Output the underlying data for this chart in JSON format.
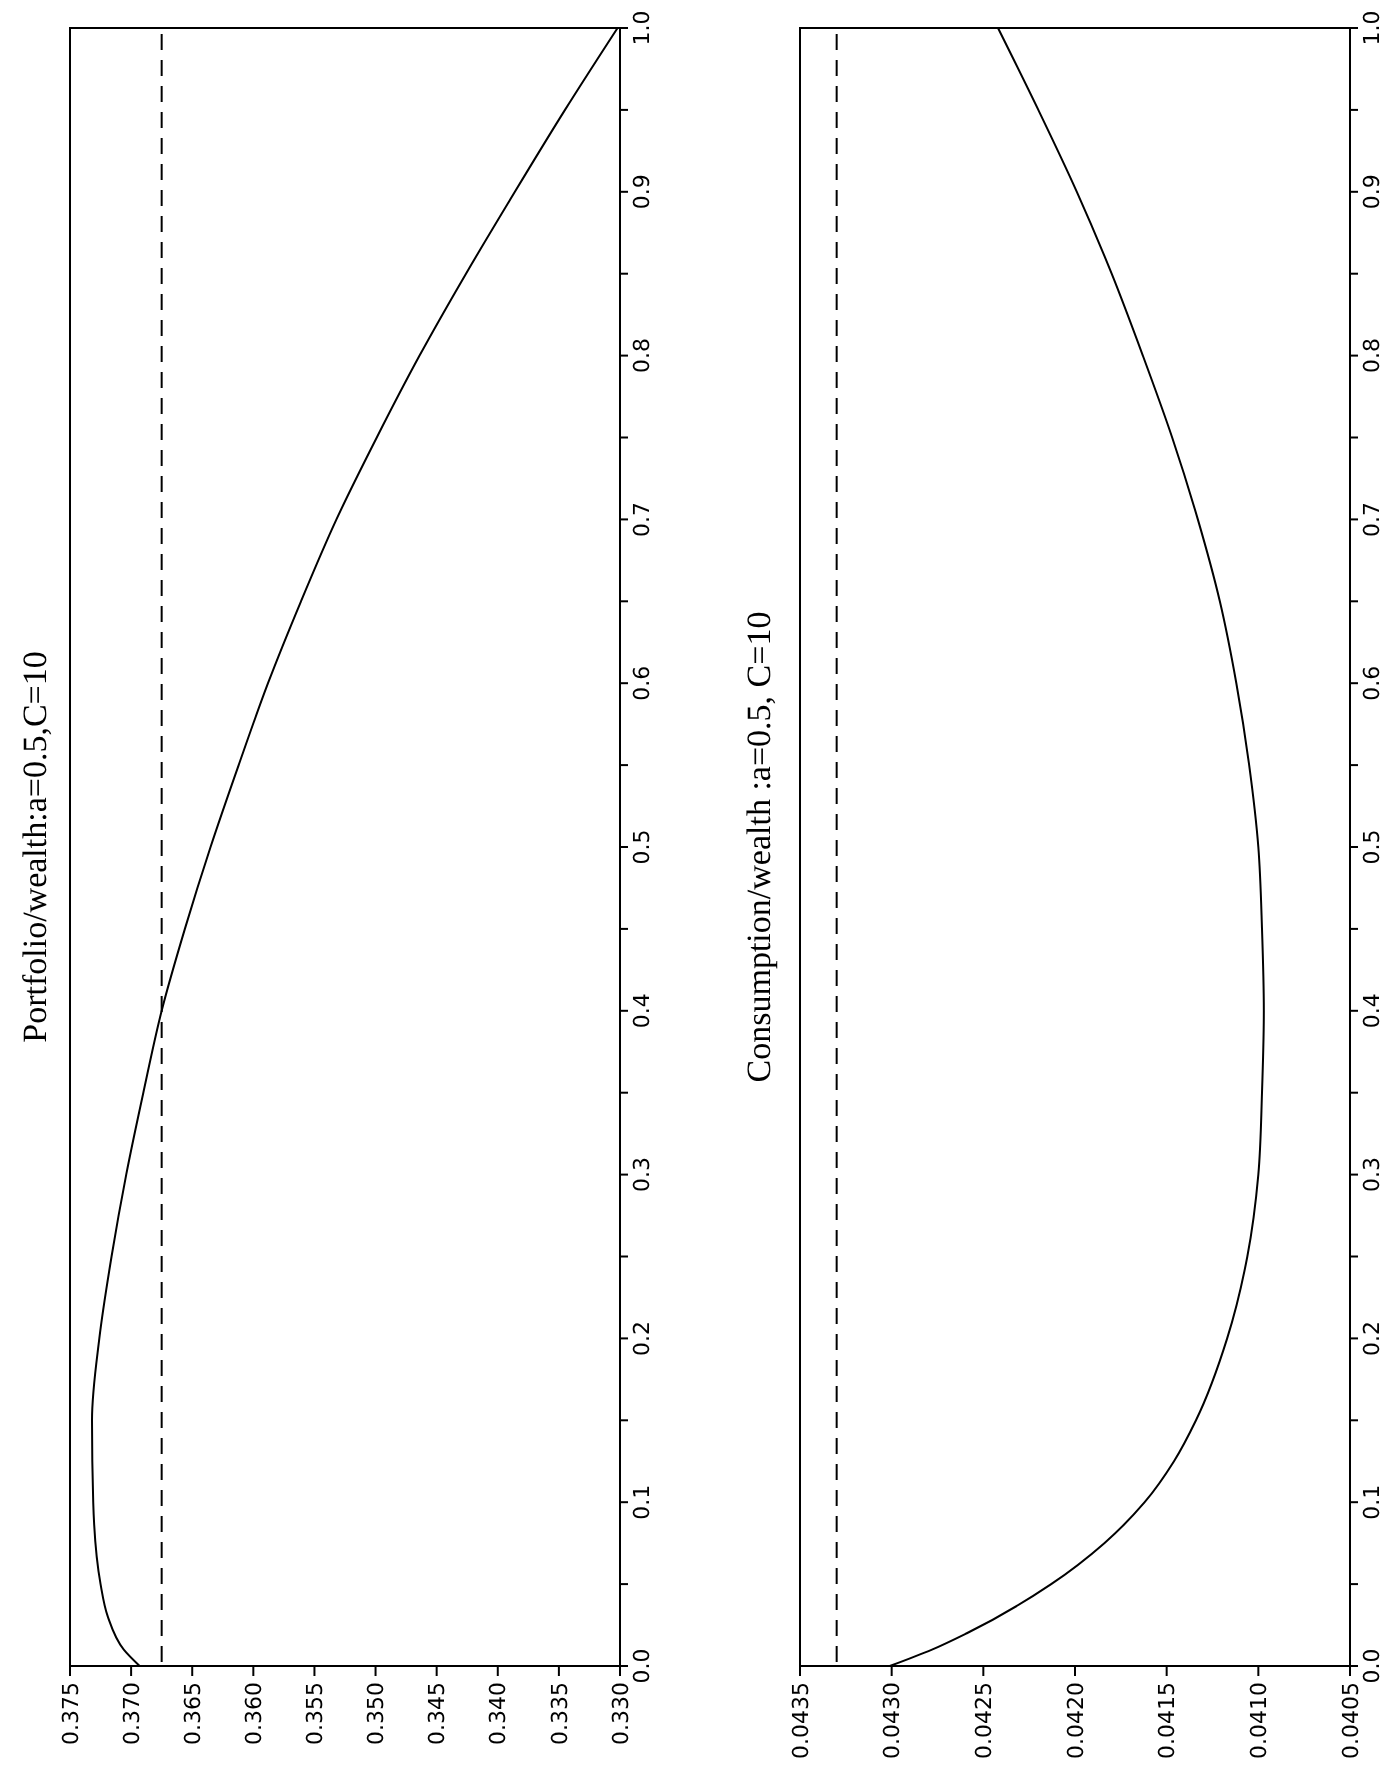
{
  "chart_data": [
    {
      "type": "line",
      "title": "Portfolio/wealth:a=0.5,C=10",
      "series": [
        {
          "color": "#000000",
          "x": [
            0.3693,
            0.3706,
            0.3719,
            0.3725,
            0.3731,
            0.3732,
            0.3726,
            0.3716,
            0.3704,
            0.369,
            0.3675,
            0.3656,
            0.3635,
            0.3612,
            0.3588,
            0.3561,
            0.3532,
            0.3499,
            0.3464,
            0.3426,
            0.3386,
            0.3345,
            0.3302
          ],
          "values": [
            0,
            0.01,
            0.03,
            0.05,
            0.1,
            0.15,
            0.2,
            0.25,
            0.3,
            0.35,
            0.4,
            0.45,
            0.5,
            0.55,
            0.6,
            0.65,
            0.7,
            0.75,
            0.8,
            0.85,
            0.9,
            0.95,
            1.0
          ]
        }
      ],
      "xlim": [
        0.375,
        0.33
      ],
      "xticks": [
        {
          "value": 0.375,
          "label": "0.375"
        },
        {
          "value": 0.37,
          "label": "0.370"
        },
        {
          "value": 0.365,
          "label": "0.365"
        },
        {
          "value": 0.36,
          "label": "0.360"
        },
        {
          "value": 0.355,
          "label": "0.355"
        },
        {
          "value": 0.35,
          "label": "0.350"
        },
        {
          "value": 0.345,
          "label": "0.345"
        },
        {
          "value": 0.34,
          "label": "0.340"
        },
        {
          "value": 0.335,
          "label": "0.335"
        },
        {
          "value": 0.33,
          "label": "0.330"
        }
      ],
      "ylim": [
        0,
        1
      ],
      "yticks": [
        {
          "value": 0,
          "label": "0.0"
        },
        {
          "value": 0.05,
          "label": null
        },
        {
          "value": 0.1,
          "label": "0.1"
        },
        {
          "value": 0.15,
          "label": null
        },
        {
          "value": 0.2,
          "label": "0.2"
        },
        {
          "value": 0.25,
          "label": null
        },
        {
          "value": 0.3,
          "label": "0.3"
        },
        {
          "value": 0.35,
          "label": null
        },
        {
          "value": 0.4,
          "label": "0.4"
        },
        {
          "value": 0.45,
          "label": null
        },
        {
          "value": 0.5,
          "label": "0.5"
        },
        {
          "value": 0.55,
          "label": null
        },
        {
          "value": 0.6,
          "label": "0.6"
        },
        {
          "value": 0.65,
          "label": null
        },
        {
          "value": 0.7,
          "label": "0.7"
        },
        {
          "value": 0.75,
          "label": null
        },
        {
          "value": 0.8,
          "label": "0.8"
        },
        {
          "value": 0.85,
          "label": null
        },
        {
          "value": 0.9,
          "label": "0.9"
        },
        {
          "value": 0.95,
          "label": null
        },
        {
          "value": 1,
          "label": "1.0"
        }
      ],
      "ref_lines": [
        {
          "axis": "x",
          "value": 0.3675,
          "color": "#000000",
          "line_style": "dashed"
        }
      ]
    },
    {
      "type": "line",
      "title": "Consumption/wealth :a=0.5, C=10",
      "series": [
        {
          "color": "#000000",
          "x": [
            0.04301,
            0.04278,
            0.04259,
            0.04213,
            0.04184,
            0.04162,
            0.04146,
            0.04134,
            0.04117,
            0.04106,
            0.041,
            0.04098,
            0.04097,
            0.04098,
            0.041,
            0.04105,
            0.04112,
            0.04121,
            0.04133,
            0.04147,
            0.04163,
            0.0418,
            0.04199,
            0.0422,
            0.04242
          ],
          "values": [
            0,
            0.01,
            0.02,
            0.05,
            0.075,
            0.1,
            0.125,
            0.15,
            0.2,
            0.25,
            0.3,
            0.35,
            0.4,
            0.45,
            0.5,
            0.55,
            0.6,
            0.65,
            0.7,
            0.75,
            0.8,
            0.85,
            0.9,
            0.95,
            1.0
          ]
        }
      ],
      "xlim": [
        0.0435,
        0.0405
      ],
      "xticks": [
        {
          "value": 0.0435,
          "label": "0.0435"
        },
        {
          "value": 0.043,
          "label": "0.0430"
        },
        {
          "value": 0.0425,
          "label": "0.0425"
        },
        {
          "value": 0.042,
          "label": "0.0420"
        },
        {
          "value": 0.0415,
          "label": "0.0415"
        },
        {
          "value": 0.041,
          "label": "0.0410"
        },
        {
          "value": 0.0405,
          "label": "0.0405"
        }
      ],
      "ylim": [
        0,
        1
      ],
      "yticks": [
        {
          "value": 0,
          "label": "0.0"
        },
        {
          "value": 0.05,
          "label": null
        },
        {
          "value": 0.1,
          "label": "0.1"
        },
        {
          "value": 0.15,
          "label": null
        },
        {
          "value": 0.2,
          "label": "0.2"
        },
        {
          "value": 0.25,
          "label": null
        },
        {
          "value": 0.3,
          "label": "0.3"
        },
        {
          "value": 0.35,
          "label": null
        },
        {
          "value": 0.4,
          "label": "0.4"
        },
        {
          "value": 0.45,
          "label": null
        },
        {
          "value": 0.5,
          "label": "0.5"
        },
        {
          "value": 0.55,
          "label": null
        },
        {
          "value": 0.6,
          "label": "0.6"
        },
        {
          "value": 0.65,
          "label": null
        },
        {
          "value": 0.7,
          "label": "0.7"
        },
        {
          "value": 0.75,
          "label": null
        },
        {
          "value": 0.8,
          "label": "0.8"
        },
        {
          "value": 0.85,
          "label": null
        },
        {
          "value": 0.9,
          "label": "0.9"
        },
        {
          "value": 0.95,
          "label": null
        },
        {
          "value": 1,
          "label": "1.0"
        }
      ],
      "ref_lines": [
        {
          "axis": "x",
          "value": 0.0433,
          "color": "#000000",
          "line_style": "dashed"
        }
      ]
    }
  ]
}
